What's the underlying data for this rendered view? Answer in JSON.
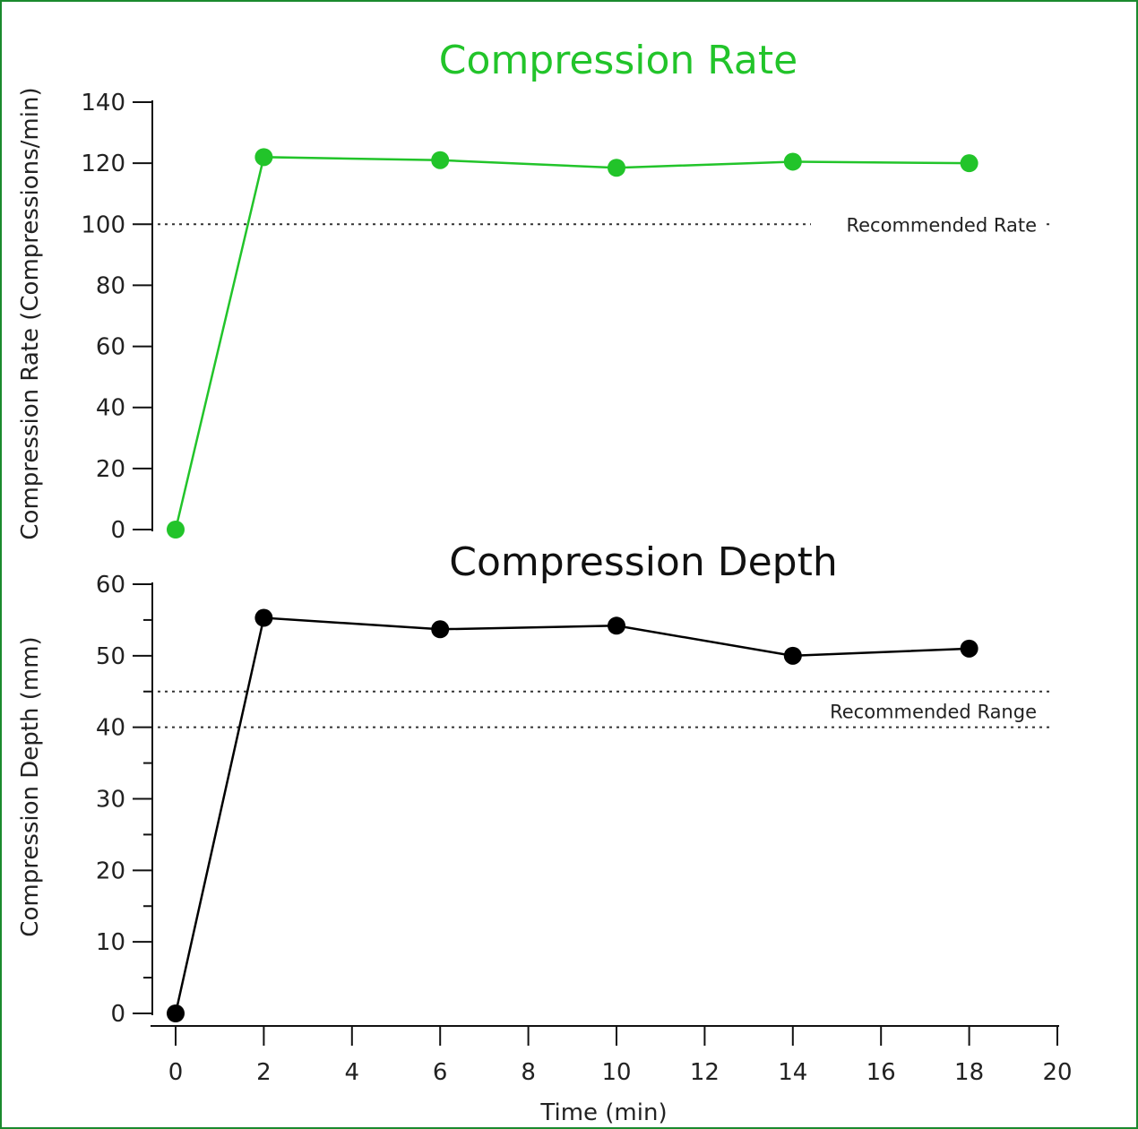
{
  "chart_data": [
    {
      "type": "line",
      "title": "Compression Rate",
      "title_color": "#22c42a",
      "ylabel": "Compression Rate (Compressions/min)",
      "xlabel": "",
      "ylim": [
        0,
        140
      ],
      "yticks": [
        0,
        20,
        40,
        60,
        80,
        100,
        120,
        140
      ],
      "series": [
        {
          "color": "#22c42a",
          "points": [
            {
              "x": 0,
              "y": 0
            },
            {
              "x": 2,
              "y": 122
            },
            {
              "x": 6,
              "y": 121
            },
            {
              "x": 10,
              "y": 118.5
            },
            {
              "x": 14,
              "y": 120.5
            },
            {
              "x": 18,
              "y": 120
            }
          ]
        }
      ],
      "reference_lines": [
        {
          "y": 100,
          "label": "Recommended Rate"
        }
      ]
    },
    {
      "type": "line",
      "title": "Compression Depth",
      "title_color": "#111111",
      "ylabel": "Compression Depth (mm)",
      "xlabel": "Time (min)",
      "ylim": [
        0,
        60
      ],
      "yticks": [
        0,
        10,
        20,
        30,
        40,
        50,
        60
      ],
      "xlim": [
        0,
        20
      ],
      "xticks": [
        0,
        2,
        4,
        6,
        8,
        10,
        12,
        14,
        16,
        18,
        20
      ],
      "series": [
        {
          "color": "#000000",
          "points": [
            {
              "x": 0,
              "y": 0
            },
            {
              "x": 2,
              "y": 55.3
            },
            {
              "x": 6,
              "y": 53.7
            },
            {
              "x": 10,
              "y": 54.2
            },
            {
              "x": 14,
              "y": 50
            },
            {
              "x": 18,
              "y": 51
            }
          ]
        }
      ],
      "reference_lines": [
        {
          "y": 45,
          "label": ""
        },
        {
          "y": 40,
          "label": "Recommended Range"
        }
      ]
    }
  ]
}
